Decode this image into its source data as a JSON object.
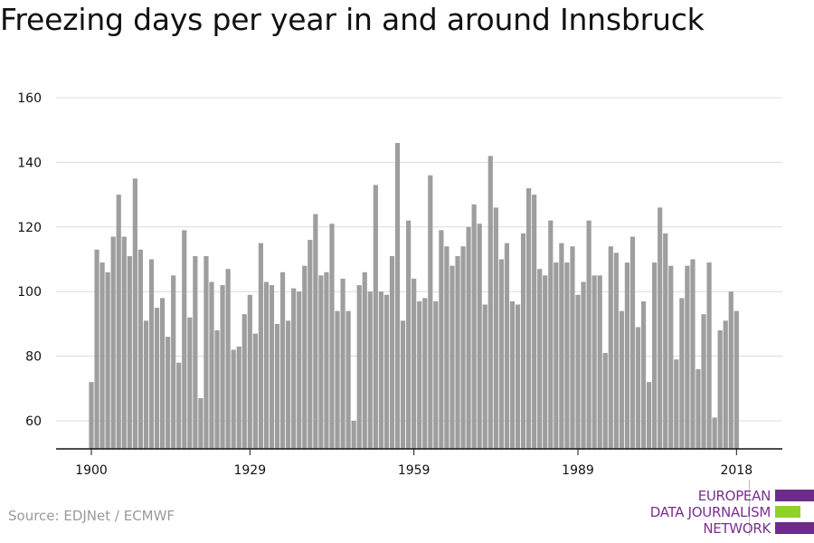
{
  "chart_data": {
    "type": "bar",
    "title": "Freezing days per year in and around Innsbruck",
    "xlabel": "",
    "ylabel": "",
    "x_start": 1900,
    "x_end": 2018,
    "x_ticks": [
      1900,
      1929,
      1959,
      1989,
      2018
    ],
    "ylim": [
      50,
      162
    ],
    "y_ticks": [
      60,
      80,
      100,
      120,
      140,
      160
    ],
    "grid": true,
    "bar_color": "#9e9e9e",
    "values": [
      72,
      113,
      109,
      106,
      117,
      130,
      117,
      111,
      135,
      113,
      91,
      110,
      95,
      98,
      86,
      105,
      78,
      119,
      92,
      111,
      67,
      111,
      103,
      88,
      102,
      107,
      82,
      83,
      93,
      99,
      87,
      115,
      103,
      102,
      90,
      106,
      91,
      101,
      100,
      108,
      116,
      124,
      105,
      106,
      121,
      94,
      104,
      94,
      60,
      102,
      106,
      100,
      133,
      100,
      99,
      111,
      146,
      91,
      122,
      104,
      97,
      98,
      136,
      97,
      119,
      114,
      108,
      111,
      114,
      120,
      127,
      121,
      96,
      142,
      126,
      110,
      115,
      97,
      96,
      118,
      132,
      130,
      107,
      105,
      122,
      109,
      115,
      109,
      114,
      99,
      103,
      122,
      105,
      105,
      81,
      114,
      112,
      94,
      109,
      117,
      89,
      97,
      72,
      109,
      126,
      118,
      108,
      79,
      98,
      108,
      110,
      76,
      93,
      109,
      61,
      88,
      91,
      100,
      94
    ]
  },
  "source": "Source: EDJNet / ECMWF",
  "logo": {
    "line1": "EUROPEAN",
    "line2": "DATA JOURNALISM",
    "line3": "NETWORK",
    "purple": "#6e2b8a",
    "green": "#8fd12a"
  }
}
